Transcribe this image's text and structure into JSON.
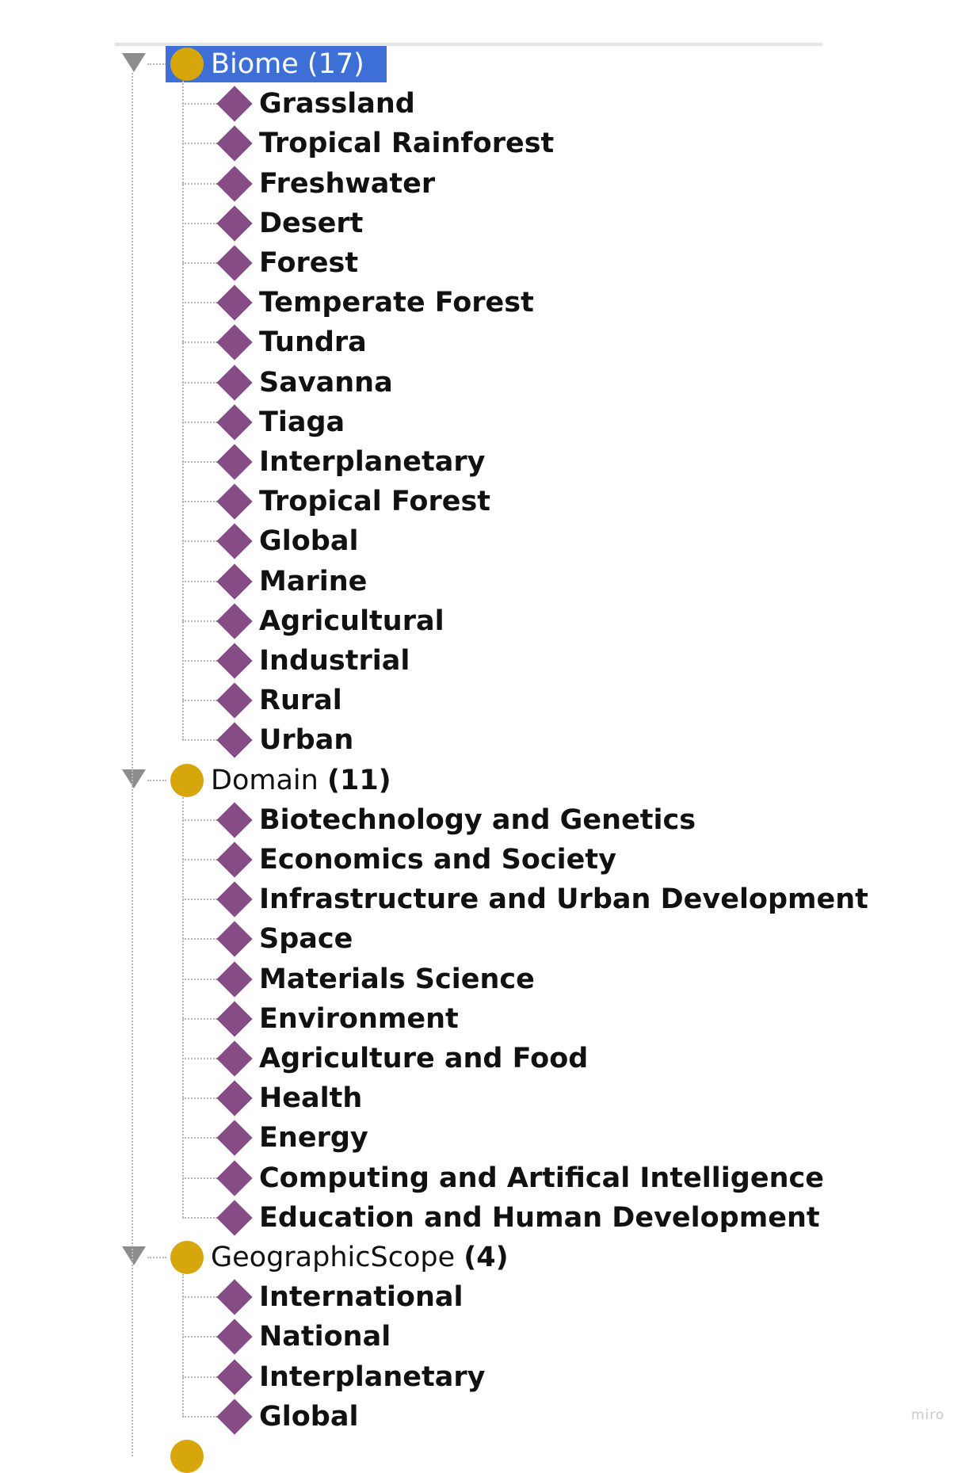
{
  "tree": {
    "classes": [
      {
        "name": "Biome",
        "count": "(17)",
        "selected": true,
        "expanded": true,
        "icon": "class-circle-icon",
        "individuals": [
          "Grassland",
          "Tropical Rainforest",
          "Freshwater",
          "Desert",
          "Forest",
          "Temperate Forest",
          "Tundra",
          "Savanna",
          "Tiaga",
          "Interplanetary",
          "Tropical Forest",
          "Global",
          "Marine",
          "Agricultural",
          "Industrial",
          "Rural",
          "Urban"
        ]
      },
      {
        "name": "Domain",
        "count": "(11)",
        "selected": false,
        "expanded": true,
        "icon": "class-circle-icon",
        "individuals": [
          "Biotechnology and Genetics",
          "Economics and Society",
          "Infrastructure and Urban Development",
          "Space",
          "Materials Science",
          "Environment",
          "Agriculture and Food",
          "Health",
          "Energy",
          "Computing and Artifical Intelligence",
          "Education and Human Development"
        ]
      },
      {
        "name": "GeographicScope",
        "count": "(4)",
        "selected": false,
        "expanded": true,
        "icon": "class-circle-icon",
        "individuals": [
          "International",
          "National",
          "Interplanetary",
          "Global"
        ]
      }
    ],
    "individual_icon": "individual-diamond-icon",
    "toggle_icon": "expand-triangle-icon"
  },
  "colors": {
    "selection": "#3e6fd6",
    "class_icon": "#d6a60b",
    "individual_icon": "#864c86"
  },
  "watermark": "miro"
}
